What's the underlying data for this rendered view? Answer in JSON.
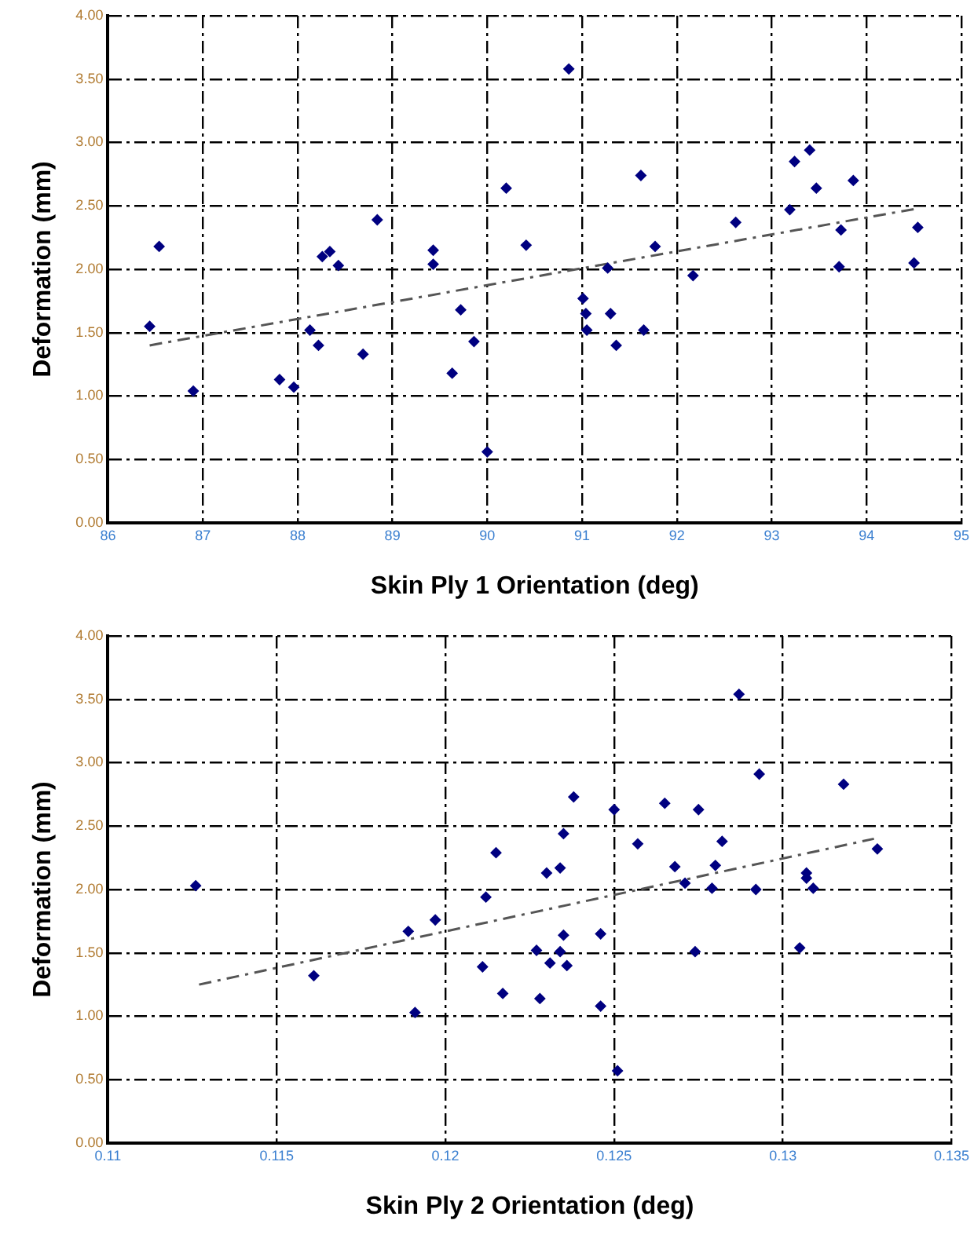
{
  "chart_data": [
    {
      "type": "scatter",
      "xlabel": "Skin Ply 1 Orientation (deg)",
      "ylabel": "Deformation (mm)",
      "xlim": [
        86,
        95
      ],
      "xticks": [
        86,
        87,
        88,
        89,
        90,
        91,
        92,
        93,
        94,
        95
      ],
      "ylim": [
        0,
        4
      ],
      "yticks": [
        {
          "value": 0,
          "label": "0.00"
        },
        {
          "value": 0.5,
          "label": "0.50"
        },
        {
          "value": 1,
          "label": "1.00"
        },
        {
          "value": 1.5,
          "label": "1.50"
        },
        {
          "value": 2,
          "label": "2.00"
        },
        {
          "value": 2.5,
          "label": "2.50"
        },
        {
          "value": 3,
          "label": "3.00"
        },
        {
          "value": 3.5,
          "label": "3.50"
        },
        {
          "value": 4,
          "label": "4.00"
        }
      ],
      "grid": true,
      "series": [
        {
          "marker": "diamond",
          "color": "#000080",
          "x": [
            86.44,
            86.54,
            86.9,
            87.81,
            87.96,
            88.13,
            88.22,
            88.26,
            88.34,
            88.43,
            88.69,
            88.84,
            89.43,
            89.43,
            89.63,
            89.72,
            89.86,
            90.0,
            90.2,
            90.41,
            90.86,
            91.01,
            91.04,
            91.05,
            91.27,
            91.3,
            91.36,
            91.62,
            91.65,
            91.77,
            92.17,
            92.62,
            93.19,
            93.24,
            93.4,
            93.47,
            93.71,
            93.73,
            93.86,
            94.5,
            94.54
          ],
          "values": [
            1.55,
            2.18,
            1.04,
            1.13,
            1.07,
            1.52,
            1.4,
            2.1,
            2.14,
            2.03,
            1.33,
            2.39,
            2.15,
            2.04,
            1.18,
            1.68,
            1.43,
            0.56,
            2.64,
            2.19,
            3.58,
            1.77,
            1.65,
            1.52,
            2.01,
            1.65,
            1.4,
            2.74,
            1.52,
            2.18,
            1.95,
            2.37,
            2.47,
            2.85,
            2.94,
            2.64,
            2.02,
            2.31,
            2.7,
            2.05,
            2.33
          ]
        },
        {
          "type": "line",
          "color": "#555555",
          "line_style": "dashed",
          "x": [
            86.44,
            94.54
          ],
          "values": [
            1.4,
            2.48
          ]
        }
      ]
    },
    {
      "type": "scatter",
      "xlabel": "Skin Ply 2 Orientation (deg)",
      "ylabel": "Deformation (mm)",
      "xlim": [
        0.11,
        0.135
      ],
      "xticks": [
        0.11,
        0.115,
        0.12,
        0.125,
        0.13,
        0.135
      ],
      "ylim": [
        0,
        4
      ],
      "yticks": [
        {
          "value": 0,
          "label": "0.00"
        },
        {
          "value": 0.5,
          "label": "0.50"
        },
        {
          "value": 1,
          "label": "1.00"
        },
        {
          "value": 1.5,
          "label": "1.50"
        },
        {
          "value": 2,
          "label": "2.00"
        },
        {
          "value": 2.5,
          "label": "2.50"
        },
        {
          "value": 3,
          "label": "3.00"
        },
        {
          "value": 3.5,
          "label": "3.50"
        },
        {
          "value": 4,
          "label": "4.00"
        }
      ],
      "grid": true,
      "series": [
        {
          "marker": "diamond",
          "color": "#000080",
          "x": [
            0.1126,
            0.1161,
            0.1189,
            0.1191,
            0.1197,
            0.1211,
            0.1212,
            0.1215,
            0.1217,
            0.1227,
            0.1228,
            0.123,
            0.1231,
            0.1234,
            0.1234,
            0.1235,
            0.1235,
            0.1236,
            0.1238,
            0.1246,
            0.1246,
            0.125,
            0.1251,
            0.1257,
            0.1265,
            0.1268,
            0.1271,
            0.1274,
            0.1275,
            0.1279,
            0.128,
            0.1282,
            0.1287,
            0.1292,
            0.1293,
            0.1305,
            0.1307,
            0.1307,
            0.1309,
            0.1318,
            0.1328
          ],
          "values": [
            2.03,
            1.32,
            1.67,
            1.03,
            1.76,
            1.39,
            1.94,
            2.29,
            1.18,
            1.52,
            1.14,
            2.13,
            1.42,
            2.17,
            1.51,
            1.64,
            2.44,
            1.4,
            2.73,
            1.65,
            1.08,
            2.63,
            0.57,
            2.36,
            2.68,
            2.18,
            2.05,
            1.51,
            2.63,
            2.01,
            2.19,
            2.38,
            3.54,
            2.0,
            2.91,
            1.54,
            2.13,
            2.09,
            2.01,
            2.83,
            2.32
          ]
        },
        {
          "type": "line",
          "color": "#555555",
          "line_style": "dashed",
          "x": [
            0.1127,
            0.1327
          ],
          "values": [
            1.25,
            2.4
          ]
        }
      ]
    }
  ]
}
